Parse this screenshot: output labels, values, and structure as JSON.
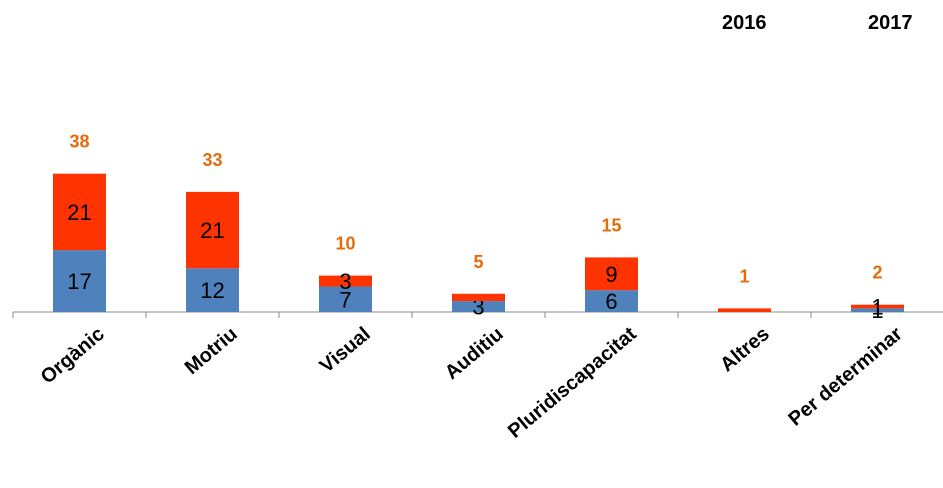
{
  "chart_data": {
    "type": "bar",
    "stacked": true,
    "categories": [
      "Orgànic",
      "Motriu",
      "Visual",
      "Auditiu",
      "Pluridiscapacitat",
      "Altres",
      "Per determinar"
    ],
    "series": [
      {
        "name": "2016",
        "values": [
          17,
          12,
          7,
          3,
          6,
          0,
          1
        ],
        "labels": [
          "17",
          "12",
          "7",
          "3",
          "6",
          "",
          "1"
        ]
      },
      {
        "name": "2017",
        "values": [
          21,
          21,
          3,
          2,
          9,
          1,
          1
        ],
        "labels": [
          "21",
          "21",
          "3",
          "",
          "9",
          "",
          "1"
        ]
      }
    ],
    "totals": [
      38,
      33,
      10,
      5,
      15,
      1,
      2
    ],
    "ylim": [
      0,
      40
    ],
    "grid": false,
    "legend_position": "top-right"
  },
  "colors": {
    "series_2016": "#4F81BD",
    "series_2017": "#FF3300",
    "total_label": "#E46C0A",
    "axis": "#888888",
    "text": "#000000"
  }
}
